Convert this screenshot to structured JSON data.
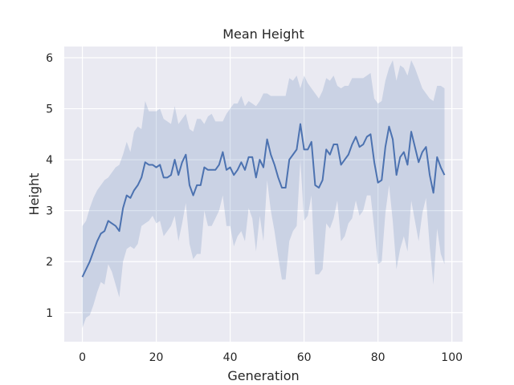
{
  "chart_data": {
    "type": "line",
    "title": "Mean Height",
    "xlabel": "Generation",
    "ylabel": "Height",
    "xlim": [
      -4.9,
      102.9
    ],
    "ylim": [
      0.43,
      6.22
    ],
    "xticks": [
      0,
      20,
      40,
      60,
      80,
      100
    ],
    "yticks": [
      1,
      2,
      3,
      4,
      5,
      6
    ],
    "grid": true,
    "colors": {
      "line": "#4c72b0",
      "band": "#4c72b0",
      "background": "#eaeaf2",
      "grid": "#ffffff"
    },
    "x": [
      0,
      1,
      2,
      3,
      4,
      5,
      6,
      7,
      8,
      9,
      10,
      11,
      12,
      13,
      14,
      15,
      16,
      17,
      18,
      19,
      20,
      21,
      22,
      23,
      24,
      25,
      26,
      27,
      28,
      29,
      30,
      31,
      32,
      33,
      34,
      35,
      36,
      37,
      38,
      39,
      40,
      41,
      42,
      43,
      44,
      45,
      46,
      47,
      48,
      49,
      50,
      51,
      52,
      53,
      54,
      55,
      56,
      57,
      58,
      59,
      60,
      61,
      62,
      63,
      64,
      65,
      66,
      67,
      68,
      69,
      70,
      71,
      72,
      73,
      74,
      75,
      76,
      77,
      78,
      79,
      80,
      81,
      82,
      83,
      84,
      85,
      86,
      87,
      88,
      89,
      90,
      91,
      92,
      93,
      94,
      95,
      96,
      97,
      98
    ],
    "series": [
      {
        "values": [
          1.7,
          1.85,
          2.0,
          2.2,
          2.4,
          2.55,
          2.6,
          2.8,
          2.75,
          2.7,
          2.6,
          3.05,
          3.3,
          3.25,
          3.4,
          3.5,
          3.65,
          3.95,
          3.9,
          3.9,
          3.85,
          3.9,
          3.65,
          3.65,
          3.7,
          4.0,
          3.7,
          3.95,
          4.1,
          3.5,
          3.3,
          3.5,
          3.5,
          3.85,
          3.8,
          3.8,
          3.8,
          3.9,
          4.15,
          3.8,
          3.85,
          3.7,
          3.8,
          3.95,
          3.8,
          4.05,
          4.05,
          3.65,
          4.0,
          3.85,
          4.4,
          4.1,
          3.9,
          3.65,
          3.45,
          3.45,
          4.0,
          4.1,
          4.2,
          4.7,
          4.2,
          4.2,
          4.35,
          3.5,
          3.45,
          3.6,
          4.2,
          4.1,
          4.3,
          4.3,
          3.9,
          4.0,
          4.1,
          4.3,
          4.45,
          4.25,
          4.3,
          4.45,
          4.5,
          3.95,
          3.55,
          3.6,
          4.25,
          4.65,
          4.4,
          3.7,
          4.05,
          4.15,
          3.9,
          4.55,
          4.25,
          3.95,
          4.15,
          4.25,
          3.7,
          3.35,
          4.05,
          3.85,
          3.7
        ],
        "ci_lower": [
          0.7,
          0.9,
          0.95,
          1.15,
          1.4,
          1.6,
          1.55,
          1.95,
          1.8,
          1.55,
          1.3,
          2.0,
          2.25,
          2.3,
          2.25,
          2.35,
          2.7,
          2.75,
          2.8,
          2.9,
          2.75,
          2.8,
          2.5,
          2.6,
          2.7,
          2.9,
          2.4,
          2.75,
          3.15,
          2.35,
          2.05,
          2.15,
          2.15,
          3.0,
          2.7,
          2.7,
          2.85,
          3.0,
          3.3,
          2.7,
          2.7,
          2.3,
          2.5,
          2.6,
          2.4,
          3.05,
          2.85,
          2.2,
          2.9,
          2.4,
          3.6,
          3.0,
          2.6,
          2.1,
          1.65,
          1.65,
          2.4,
          2.6,
          2.7,
          4.0,
          2.8,
          2.9,
          3.3,
          1.75,
          1.75,
          1.85,
          2.75,
          2.65,
          2.85,
          3.2,
          2.4,
          2.5,
          2.75,
          2.85,
          3.2,
          2.9,
          3.0,
          3.3,
          3.3,
          2.65,
          1.95,
          2.0,
          2.95,
          3.5,
          2.8,
          1.85,
          2.25,
          2.5,
          2.2,
          3.2,
          2.8,
          2.4,
          2.95,
          3.25,
          2.3,
          1.55,
          2.65,
          2.15,
          1.95
        ],
        "ci_upper": [
          2.7,
          2.8,
          3.05,
          3.25,
          3.4,
          3.5,
          3.6,
          3.65,
          3.75,
          3.85,
          3.9,
          4.1,
          4.35,
          4.15,
          4.55,
          4.65,
          4.6,
          5.15,
          4.95,
          4.95,
          4.95,
          5.0,
          4.8,
          4.75,
          4.7,
          5.05,
          4.7,
          4.8,
          4.9,
          4.6,
          4.55,
          4.8,
          4.8,
          4.7,
          4.85,
          4.9,
          4.75,
          4.75,
          4.75,
          4.9,
          5.0,
          5.1,
          5.1,
          5.25,
          5.05,
          5.15,
          5.1,
          5.05,
          5.15,
          5.3,
          5.3,
          5.25,
          5.25,
          5.25,
          5.25,
          5.25,
          5.6,
          5.55,
          5.65,
          5.4,
          5.65,
          5.5,
          5.4,
          5.3,
          5.2,
          5.35,
          5.6,
          5.55,
          5.65,
          5.45,
          5.4,
          5.45,
          5.45,
          5.6,
          5.6,
          5.6,
          5.6,
          5.65,
          5.7,
          5.2,
          5.1,
          5.15,
          5.55,
          5.8,
          5.95,
          5.55,
          5.85,
          5.8,
          5.65,
          5.95,
          5.8,
          5.6,
          5.4,
          5.3,
          5.2,
          5.15,
          5.45,
          5.45,
          5.4
        ]
      }
    ]
  }
}
